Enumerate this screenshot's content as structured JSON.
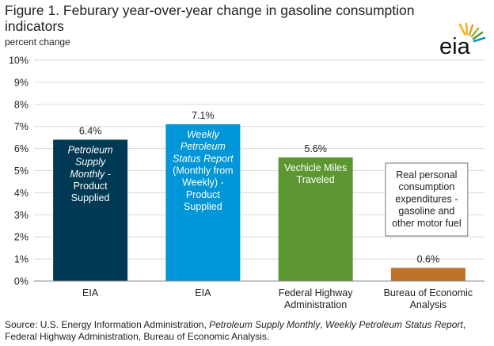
{
  "title": "Figure 1. Feburary year-over-year change in gasoline consumption indicators",
  "ylabel": "percent change",
  "logo": {
    "icon": "eia-logo-icon",
    "text": "eia"
  },
  "chart_data": {
    "type": "bar",
    "categories": [
      "EIA",
      "EIA",
      "Federal Highway Administration",
      "Bureau of Economic Analysis"
    ],
    "category_lines": [
      [
        "EIA"
      ],
      [
        "EIA"
      ],
      [
        "Federal Highway",
        "Administration"
      ],
      [
        "Bureau of Economic",
        "Analysis"
      ]
    ],
    "values": [
      6.4,
      7.1,
      5.6,
      0.6
    ],
    "value_labels": [
      "6.4%",
      "7.1%",
      "5.6%",
      "0.6%"
    ],
    "colors": [
      "#003953",
      "#0096d7",
      "#5d9732",
      "#bd732a"
    ],
    "ylim": [
      0,
      10
    ],
    "yticks": [
      "0%",
      "1%",
      "2%",
      "3%",
      "4%",
      "5%",
      "6%",
      "7%",
      "8%",
      "9%",
      "10%"
    ],
    "grid": true,
    "annotations": [
      {
        "lines": [
          {
            "text": "Petroleum",
            "italic": true
          },
          {
            "text": "Supply",
            "italic": true
          },
          {
            "text": "Monthly -",
            "italic": true
          },
          {
            "text": "Product",
            "italic": false
          },
          {
            "text": "Supplied",
            "italic": false
          }
        ]
      },
      {
        "lines": [
          {
            "text": "Weekly",
            "italic": true
          },
          {
            "text": "Petroleum",
            "italic": true
          },
          {
            "text": "Status Report",
            "italic": true
          },
          {
            "text": "(Monthly from",
            "italic": false
          },
          {
            "text": "Weekly) -",
            "italic": false
          },
          {
            "text": "Product",
            "italic": false
          },
          {
            "text": "Supplied",
            "italic": false
          }
        ]
      },
      {
        "lines": [
          {
            "text": "Vechicle Miles",
            "italic": false
          },
          {
            "text": "Traveled",
            "italic": false
          }
        ]
      },
      {
        "lines": [
          {
            "text": "Real personal",
            "italic": false
          },
          {
            "text": "consumption",
            "italic": false
          },
          {
            "text": "expenditures -",
            "italic": false
          },
          {
            "text": "gasoline and",
            "italic": false
          },
          {
            "text": "other motor fuel",
            "italic": false
          }
        ]
      }
    ]
  },
  "source": {
    "prefix": "Source: U.S. Energy Information Administration, ",
    "pub1": "Petroleum Supply Monthly",
    "sep": ", ",
    "pub2": "Weekly Petroleum Status Report",
    "suffix": ", Federal Highway Administration, Bureau of Economic Analysis."
  }
}
